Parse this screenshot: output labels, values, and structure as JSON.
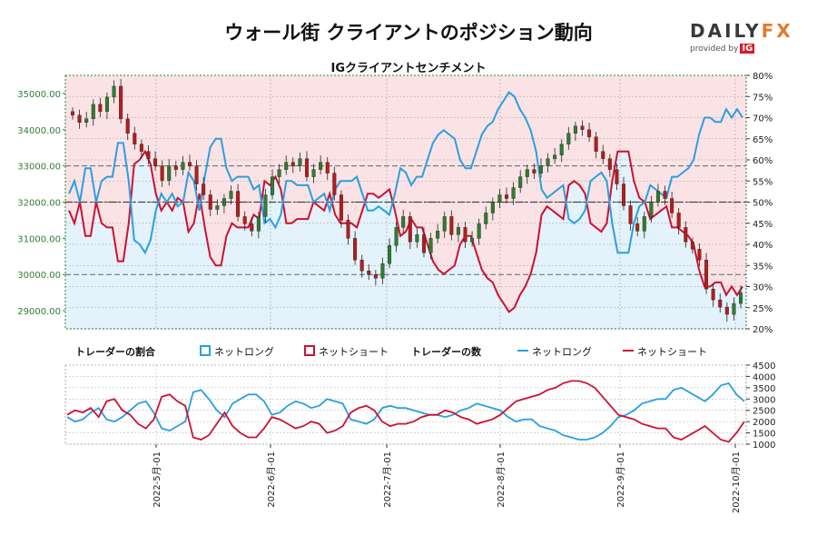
{
  "header": {
    "title": "ウォール街 クライアントのポジション動向",
    "subtitle": "IGクライアントセンチメント"
  },
  "logo": {
    "name_left": "DAILY",
    "name_right": "FX",
    "tagline": "provided by",
    "brand": "IG"
  },
  "legend": {
    "ratio_title": "トレーダーの割合",
    "ratio_long": "ネットロング",
    "ratio_short": "ネットショート",
    "count_title": "トレーダーの数",
    "count_long": "ネットロング",
    "count_short": "ネットショート"
  },
  "colors": {
    "long": "#2a9fe0",
    "short": "#cc1133",
    "long_fill": "#e3f2fb",
    "short_fill": "#fbe3e5",
    "candle_up": "#2e7d32",
    "candle_down": "#b71c1c",
    "axis_left": "#2e7d32"
  },
  "chart_data": [
    {
      "type": "candlestick",
      "title": "IGクライアントセンチメント",
      "y_left_ticks": [
        "29000.00",
        "30000.00",
        "31000.00",
        "32000.00",
        "33000.00",
        "34000.00",
        "35000.00"
      ],
      "y_left_range": [
        28500,
        35500
      ],
      "y_right_ticks": [
        "20%",
        "25%",
        "30%",
        "35%",
        "40%",
        "45%",
        "50%",
        "55%",
        "60%",
        "65%",
        "70%",
        "75%",
        "80%"
      ],
      "y_right_range": [
        20,
        80
      ],
      "reference_levels": [
        33000,
        32000,
        30000
      ],
      "price_close": [
        34400,
        34200,
        34300,
        34700,
        34500,
        34900,
        35200,
        34300,
        33900,
        33600,
        33400,
        33200,
        33000,
        32600,
        33000,
        32900,
        33100,
        33000,
        32500,
        32200,
        31800,
        31900,
        32100,
        32300,
        31600,
        31400,
        31200,
        31600,
        32200,
        32700,
        32900,
        33100,
        33000,
        33200,
        32700,
        32900,
        33100,
        32800,
        32200,
        31500,
        31000,
        30400,
        30100,
        30000,
        29900,
        30300,
        30800,
        31300,
        31600,
        30900,
        31100,
        30600,
        31000,
        31200,
        31600,
        31100,
        31300,
        30900,
        31000,
        31400,
        31700,
        32000,
        32200,
        32100,
        32400,
        32700,
        32900,
        32800,
        33000,
        33200,
        33300,
        33600,
        33900,
        34100,
        34000,
        33800,
        33400,
        33200,
        32900,
        32500,
        31900,
        31400,
        31200,
        31600,
        32000,
        32300,
        32100,
        31700,
        31300,
        30900,
        30700,
        30400,
        29600,
        29300,
        29100,
        28900,
        29200,
        29500
      ],
      "ratio_short_pct": [
        48,
        45,
        50,
        42,
        42,
        50,
        45,
        44,
        44,
        36,
        36,
        45,
        59,
        60,
        62,
        59,
        52,
        48,
        50,
        48,
        51,
        50,
        43,
        45,
        52,
        44,
        37,
        35,
        35,
        42,
        45,
        44,
        44,
        44,
        47,
        46,
        55,
        54,
        56,
        53,
        45,
        45,
        46,
        46,
        46,
        50,
        49,
        48,
        52,
        47,
        45,
        45,
        45,
        44,
        48,
        52,
        52,
        51,
        52,
        53,
        48,
        42,
        43,
        46,
        44,
        44,
        40,
        36,
        34,
        33,
        34,
        35,
        40,
        42,
        42,
        38,
        34,
        32,
        31,
        28,
        26,
        24,
        25,
        28,
        30,
        33,
        38,
        47,
        49,
        48,
        47,
        46,
        54,
        55,
        54,
        52,
        45,
        44,
        43,
        45,
        55,
        62,
        62,
        62,
        55,
        51,
        50,
        46,
        47,
        48,
        49,
        44,
        44,
        43,
        42,
        40,
        34,
        30,
        30,
        31,
        31,
        28,
        30,
        28,
        30
      ]
    },
    {
      "type": "line",
      "title": "トレーダーの数",
      "y_right_ticks": [
        "1000",
        "1500",
        "2000",
        "2500",
        "3000",
        "3500",
        "4000",
        "4500"
      ],
      "y_right_range": [
        1000,
        4500
      ],
      "x_ticks": [
        "2022-5月-01",
        "2022-6月-01",
        "2022-7月-01",
        "2022-8月-01",
        "2022-9月-01",
        "2022-10月-01"
      ],
      "series": [
        {
          "name": "ネットロング",
          "values": [
            2200,
            2000,
            2100,
            2400,
            2600,
            2100,
            2000,
            2200,
            2500,
            2800,
            2900,
            2400,
            1700,
            1600,
            1800,
            2000,
            3300,
            3400,
            3000,
            2500,
            2200,
            2800,
            3000,
            3200,
            3200,
            2900,
            2300,
            2400,
            2700,
            2900,
            2800,
            2600,
            2700,
            3000,
            2900,
            2800,
            2100,
            2000,
            1900,
            2100,
            2600,
            2700,
            2600,
            2600,
            2500,
            2400,
            2300,
            2300,
            2200,
            2300,
            2500,
            2600,
            2800,
            2700,
            2600,
            2500,
            2200,
            2000,
            2100,
            2100,
            1800,
            1700,
            1600,
            1400,
            1300,
            1200,
            1200,
            1300,
            1500,
            1800,
            2200,
            2300,
            2500,
            2800,
            2900,
            3000,
            3000,
            3400,
            3500,
            3300,
            3100,
            2900,
            3200,
            3600,
            3700,
            3200,
            2900
          ]
        },
        {
          "name": "ネットショート",
          "values": [
            2300,
            2500,
            2400,
            2600,
            2200,
            2900,
            3000,
            2500,
            2300,
            1900,
            1700,
            2100,
            3100,
            3200,
            2900,
            2700,
            1300,
            1200,
            1400,
            1900,
            2400,
            1800,
            1500,
            1300,
            1300,
            1700,
            2200,
            2100,
            1900,
            1700,
            1800,
            2000,
            1900,
            1500,
            1600,
            1800,
            2400,
            2600,
            2700,
            2500,
            2000,
            1800,
            1900,
            1900,
            2000,
            2200,
            2300,
            2300,
            2500,
            2400,
            2200,
            2100,
            1900,
            2000,
            2100,
            2300,
            2600,
            2900,
            3000,
            3100,
            3200,
            3400,
            3500,
            3700,
            3800,
            3800,
            3700,
            3500,
            3100,
            2700,
            2300,
            2200,
            2100,
            1900,
            1800,
            1700,
            1700,
            1300,
            1200,
            1400,
            1600,
            1800,
            1500,
            1200,
            1100,
            1500,
            2000
          ]
        }
      ]
    }
  ]
}
